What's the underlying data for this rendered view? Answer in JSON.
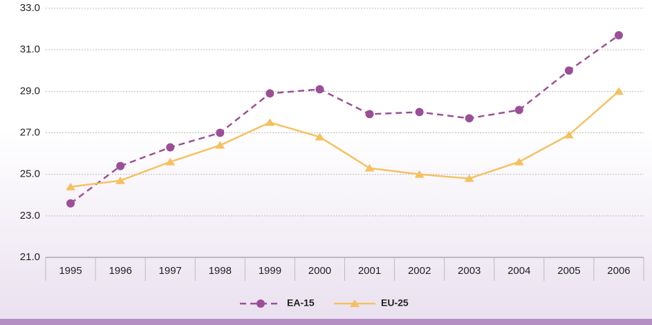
{
  "chart_data": {
    "type": "line",
    "categories": [
      "1995",
      "1996",
      "1997",
      "1998",
      "1999",
      "2000",
      "2001",
      "2002",
      "2003",
      "2004",
      "2005",
      "2006"
    ],
    "series": [
      {
        "name": "EA-15",
        "color": "#9b4f96",
        "dashed": true,
        "marker": "circle",
        "values": [
          23.6,
          25.4,
          26.3,
          27.0,
          28.9,
          29.1,
          27.9,
          28.0,
          27.7,
          28.1,
          30.0,
          31.7
        ]
      },
      {
        "name": "EU-25",
        "color": "#f5c160",
        "dashed": false,
        "marker": "triangle",
        "values": [
          24.4,
          24.7,
          25.6,
          26.4,
          27.5,
          26.8,
          25.3,
          25.0,
          24.8,
          25.6,
          26.9,
          29.0
        ]
      }
    ],
    "ylim": [
      21,
      33
    ],
    "yticks": [
      {
        "value": 21,
        "label": "21.0"
      },
      {
        "value": 23,
        "label": "23.0"
      },
      {
        "value": 25,
        "label": "25.0"
      },
      {
        "value": 27,
        "label": "27.0"
      },
      {
        "value": 29,
        "label": "29.0"
      },
      {
        "value": 31,
        "label": "31.0"
      },
      {
        "value": 33,
        "label": "33.0"
      }
    ],
    "grid": true,
    "legend": "bottom"
  }
}
